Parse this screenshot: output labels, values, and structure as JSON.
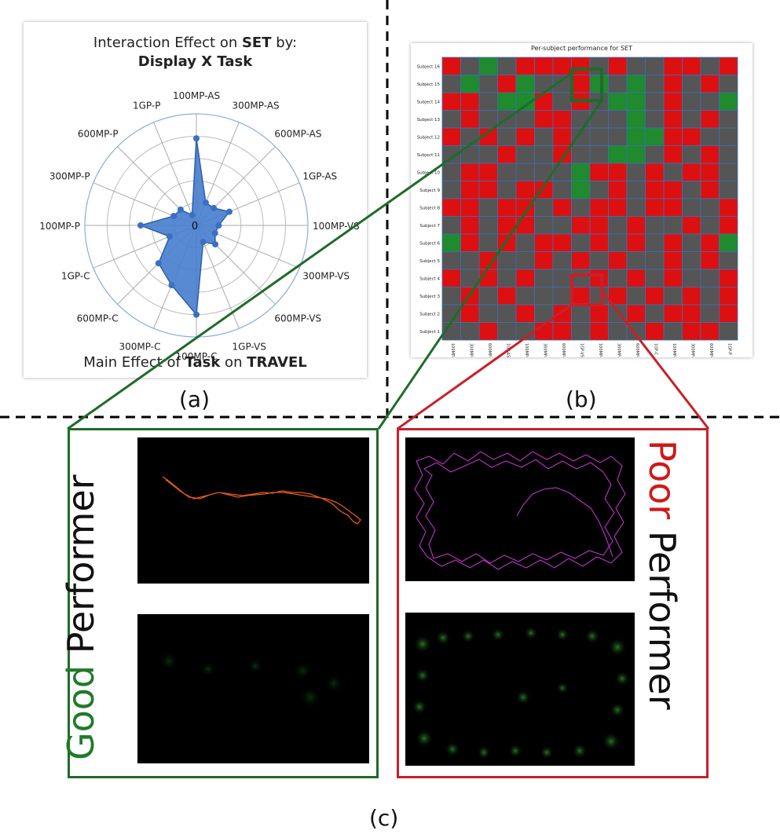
{
  "panel_a": {
    "title_line1_prefix": "Interaction Effect on ",
    "title_line1_bold": "SET",
    "title_line1_suffix": " by:",
    "title_line2": "Display X Task",
    "footer_prefix": "Main Effect of ",
    "footer_bold1": "Task",
    "footer_mid": " on ",
    "footer_bold2": "TRAVEL",
    "center_label": "0",
    "caption": "(a)",
    "chart_data": {
      "type": "radar",
      "categories": [
        "100MP-AS",
        "300MP-AS",
        "600MP-AS",
        "1GP-AS",
        "100MP-VS",
        "300MP-VS",
        "600MP-VS",
        "1GP-VS",
        "100MP-C",
        "300MP-C",
        "600MP-C",
        "1GP-C",
        "100MP-P",
        "300MP-P",
        "600MP-P",
        "1GP-P"
      ],
      "values": [
        0.78,
        0.22,
        0.22,
        0.32,
        0.2,
        0.18,
        0.24,
        0.16,
        0.8,
        0.58,
        0.48,
        0.26,
        0.5,
        0.22,
        0.2,
        0.1
      ],
      "fill_color": "#4a7fcf"
    }
  },
  "panel_b": {
    "title": "Per-subject performance for SET",
    "caption": "(b)",
    "chart_data": {
      "type": "heatmap",
      "rows": [
        "Subject 16",
        "Subject 15",
        "Subject 14",
        "Subject 13",
        "Subject 12",
        "Subject 11",
        "Subject 10",
        "Subject 9",
        "Subject 8",
        "Subject 7",
        "Subject 6",
        "Subject 5",
        "Subject 4",
        "Subject 3",
        "Subject 2",
        "Subject 1"
      ],
      "columns": [
        "100MP-AS",
        "300MP-AS",
        "600MP-AS",
        "1GP-AS",
        "100MP-VS",
        "300MP-VS",
        "600MP-VS",
        "1GP-VS",
        "100MP-C",
        "300MP-C",
        "600MP-C",
        "1GP-C",
        "100MP-P",
        "300MP-P",
        "600MP-P",
        "1GP-P"
      ],
      "cells": [
        [
          2,
          1,
          0,
          1,
          2,
          2,
          2,
          2,
          1,
          2,
          1,
          1,
          2,
          2,
          1,
          2
        ],
        [
          1,
          0,
          1,
          2,
          0,
          1,
          1,
          2,
          0,
          1,
          0,
          1,
          2,
          1,
          2,
          1
        ],
        [
          2,
          2,
          1,
          0,
          0,
          2,
          1,
          2,
          1,
          0,
          0,
          1,
          2,
          1,
          1,
          0
        ],
        [
          1,
          2,
          1,
          1,
          1,
          2,
          2,
          1,
          1,
          1,
          0,
          1,
          2,
          1,
          2,
          1
        ],
        [
          2,
          1,
          2,
          1,
          2,
          1,
          2,
          1,
          1,
          1,
          0,
          0,
          2,
          2,
          1,
          1
        ],
        [
          1,
          1,
          1,
          2,
          1,
          1,
          2,
          1,
          1,
          0,
          0,
          1,
          2,
          1,
          2,
          1
        ],
        [
          1,
          2,
          2,
          1,
          1,
          1,
          1,
          0,
          2,
          2,
          1,
          2,
          1,
          2,
          2,
          1
        ],
        [
          1,
          2,
          2,
          1,
          2,
          2,
          1,
          0,
          1,
          2,
          1,
          2,
          2,
          1,
          2,
          1
        ],
        [
          2,
          2,
          1,
          2,
          2,
          1,
          2,
          1,
          2,
          2,
          1,
          2,
          2,
          1,
          1,
          2
        ],
        [
          1,
          2,
          1,
          2,
          2,
          1,
          1,
          2,
          2,
          1,
          2,
          1,
          1,
          2,
          1,
          2
        ],
        [
          0,
          2,
          1,
          2,
          1,
          2,
          2,
          1,
          2,
          1,
          2,
          1,
          2,
          1,
          2,
          0
        ],
        [
          1,
          1,
          2,
          1,
          1,
          2,
          1,
          2,
          1,
          2,
          1,
          1,
          2,
          1,
          2,
          1
        ],
        [
          2,
          1,
          2,
          1,
          2,
          1,
          1,
          1,
          2,
          1,
          2,
          1,
          2,
          1,
          1,
          2
        ],
        [
          1,
          2,
          1,
          2,
          1,
          1,
          1,
          2,
          1,
          2,
          1,
          2,
          1,
          2,
          1,
          2
        ],
        [
          1,
          2,
          1,
          1,
          2,
          1,
          2,
          1,
          2,
          1,
          2,
          1,
          2,
          2,
          1,
          2
        ],
        [
          1,
          1,
          2,
          1,
          1,
          2,
          2,
          1,
          2,
          1,
          1,
          2,
          1,
          2,
          2,
          1
        ]
      ],
      "palette": {
        "0": "#1f8a2e",
        "1": "#555555",
        "2": "#dc1010"
      }
    }
  },
  "panel_c": {
    "good_colored": "Good",
    "good_rest": " Performer",
    "poor_colored": "Poor",
    "poor_rest": " Performer",
    "good_color": "#1f7a2a",
    "poor_color": "#d01818",
    "caption": "(c)"
  }
}
